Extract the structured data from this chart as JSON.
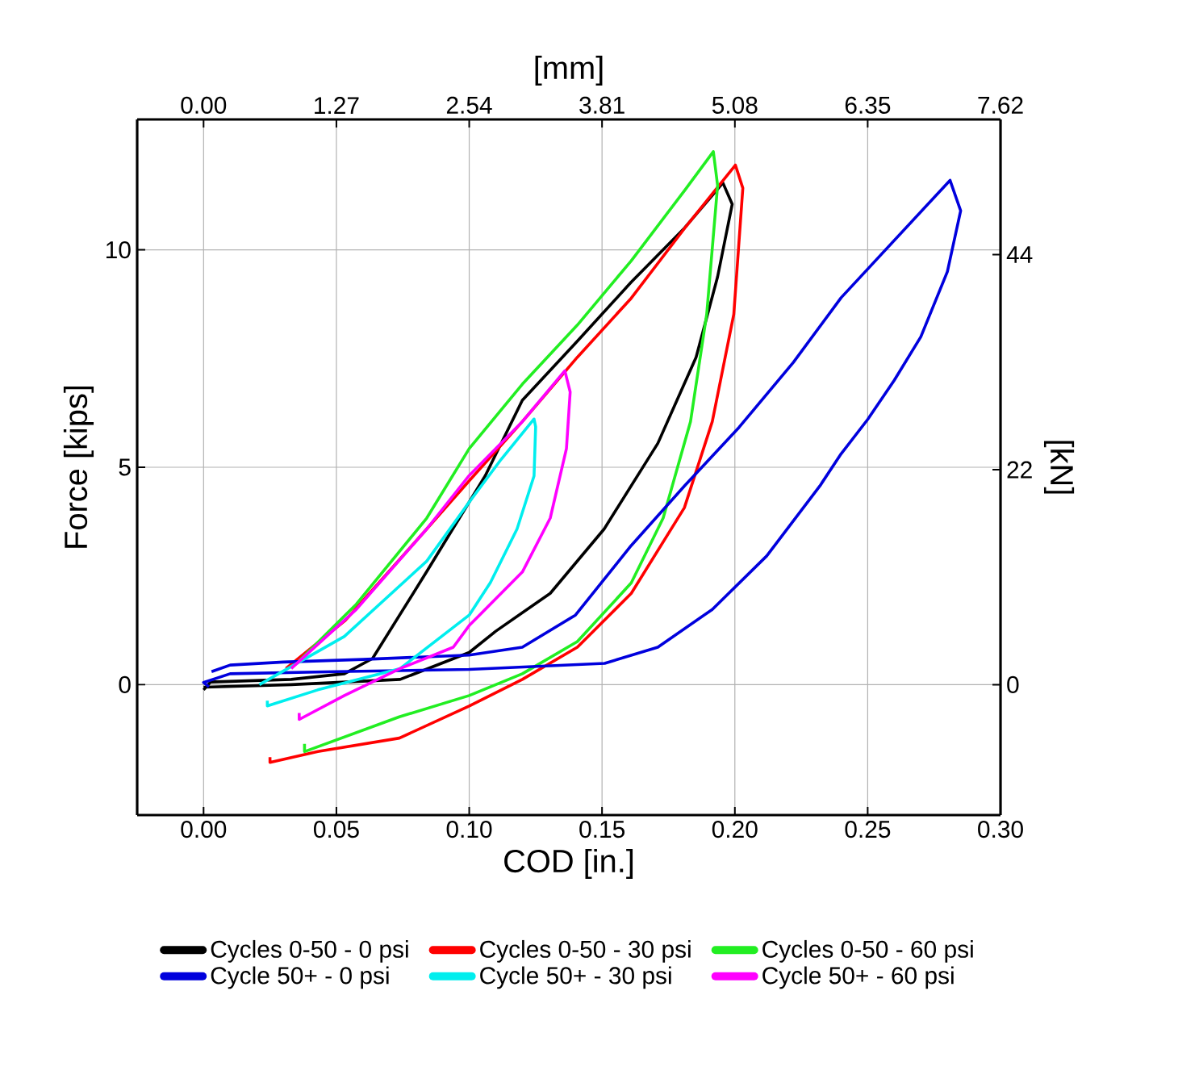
{
  "chart_data": {
    "type": "line",
    "xlabel": "COD [in.]",
    "ylabel": "Force [kips]",
    "x2label": "[mm]",
    "y2label": "[kN]",
    "xlim": [
      -0.025,
      0.3
    ],
    "ylim": [
      -3,
      13
    ],
    "x2lim": [
      -0.635,
      7.62
    ],
    "y2lim": [
      -13.34,
      57.83
    ],
    "xticks": [
      {
        "value": 0,
        "label": "0.00"
      },
      {
        "value": 0.05,
        "label": "0.05"
      },
      {
        "value": 0.1,
        "label": "0.10"
      },
      {
        "value": 0.15,
        "label": "0.15"
      },
      {
        "value": 0.2,
        "label": "0.20"
      },
      {
        "value": 0.25,
        "label": "0.25"
      },
      {
        "value": 0.3,
        "label": "0.30"
      }
    ],
    "yticks": [
      0,
      5,
      10
    ],
    "x2ticks": [
      {
        "value": 0,
        "label": "0.00"
      },
      1.27,
      2.54,
      3.81,
      5.08,
      6.35,
      7.62
    ],
    "y2ticks": [
      0,
      22,
      44
    ],
    "grid": true,
    "legend": "bottom",
    "series": [
      {
        "name": "Cycles 0-50 - 0 psi",
        "color": "#000000",
        "x": [
          0.0,
          0.0026,
          0.033,
          0.053,
          0.0636,
          0.084,
          0.106,
          0.12,
          0.1407,
          0.161,
          0.181,
          0.1955,
          0.199,
          0.1935,
          0.1854,
          0.171,
          0.1508,
          0.1305,
          0.11,
          0.1,
          0.074,
          0.033,
          0.0
        ],
        "values": [
          -0.12,
          0.06,
          0.12,
          0.25,
          0.6,
          2.6,
          4.8,
          6.54,
          7.9,
          9.26,
          10.5,
          11.54,
          11.05,
          9.38,
          7.53,
          5.55,
          3.58,
          2.1,
          1.23,
          0.74,
          0.12,
          0.0,
          -0.06
        ]
      },
      {
        "name": "Cycles 0-50 - 30 psi",
        "color": "#ff0000",
        "x": [
          0.025,
          0.025,
          0.043,
          0.0737,
          0.1,
          0.12,
          0.1407,
          0.161,
          0.181,
          0.1915,
          0.1996,
          0.203,
          0.2002,
          0.181,
          0.161,
          0.1407,
          0.12,
          0.1,
          0.084,
          0.0534,
          0.031
        ],
        "values": [
          -1.67,
          -1.79,
          -1.54,
          -1.23,
          -0.49,
          0.12,
          0.86,
          2.1,
          4.07,
          6.05,
          8.52,
          11.42,
          11.95,
          10.49,
          8.89,
          7.53,
          6.05,
          4.69,
          3.58,
          1.48,
          0.37
        ]
      },
      {
        "name": "Cycles 0-50 - 60 psi",
        "color": "#22ee22",
        "x": [
          0.038,
          0.038,
          0.0737,
          0.1,
          0.12,
          0.1407,
          0.161,
          0.173,
          0.1833,
          0.1894,
          0.1935,
          0.1919,
          0.181,
          0.161,
          0.1407,
          0.12,
          0.1,
          0.084,
          0.0575,
          0.035
        ],
        "values": [
          -1.36,
          -1.54,
          -0.74,
          -0.25,
          0.25,
          0.99,
          2.34,
          3.83,
          6.05,
          8.52,
          11.48,
          12.26,
          11.36,
          9.75,
          8.27,
          6.91,
          5.43,
          3.83,
          1.85,
          0.49
        ]
      },
      {
        "name": "Cycle 50+ - 0 psi",
        "color": "#0000dd",
        "x": [
          0.002,
          0.0,
          0.01,
          0.05,
          0.1,
          0.151,
          0.171,
          0.1915,
          0.212,
          0.232,
          0.24,
          0.25,
          0.26,
          0.27,
          0.28,
          0.285,
          0.281,
          0.24,
          0.222,
          0.2016,
          0.181,
          0.161,
          0.14,
          0.12,
          0.1,
          0.06,
          0.03,
          0.01,
          0.003
        ],
        "values": [
          -0.05,
          0.05,
          0.25,
          0.3,
          0.35,
          0.49,
          0.86,
          1.73,
          2.96,
          4.57,
          5.31,
          6.1,
          7.0,
          8.0,
          9.5,
          10.9,
          11.6,
          8.9,
          7.41,
          5.92,
          4.57,
          3.2,
          1.6,
          0.86,
          0.68,
          0.58,
          0.52,
          0.45,
          0.3
        ]
      },
      {
        "name": "Cycle 50+ - 30 psi",
        "color": "#00eeee",
        "x": [
          0.024,
          0.024,
          0.043,
          0.074,
          0.1,
          0.108,
          0.118,
          0.1244,
          0.125,
          0.1244,
          0.112,
          0.1,
          0.084,
          0.053,
          0.021
        ],
        "values": [
          -0.37,
          -0.49,
          -0.12,
          0.37,
          1.6,
          2.35,
          3.58,
          4.8,
          5.93,
          6.11,
          5.18,
          4.2,
          2.84,
          1.11,
          0.0
        ]
      },
      {
        "name": "Cycle 50+ - 60 psi",
        "color": "#ff00ff",
        "x": [
          0.036,
          0.036,
          0.053,
          0.074,
          0.094,
          0.1,
          0.12,
          0.1305,
          0.1366,
          0.138,
          0.136,
          0.12,
          0.1,
          0.084,
          0.0575,
          0.033
        ],
        "values": [
          -0.65,
          -0.8,
          -0.25,
          0.37,
          0.86,
          1.36,
          2.59,
          3.83,
          5.43,
          6.73,
          7.22,
          6.05,
          4.81,
          3.58,
          1.73,
          0.37
        ]
      }
    ]
  }
}
